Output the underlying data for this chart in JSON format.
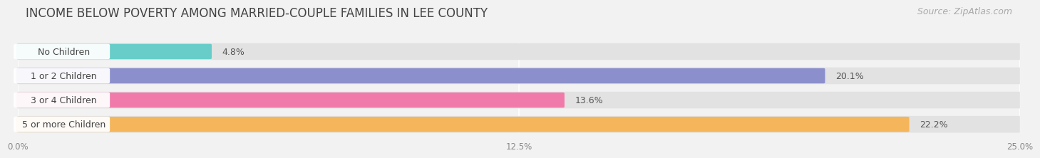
{
  "title": "INCOME BELOW POVERTY AMONG MARRIED-COUPLE FAMILIES IN LEE COUNTY",
  "source": "Source: ZipAtlas.com",
  "categories": [
    "No Children",
    "1 or 2 Children",
    "3 or 4 Children",
    "5 or more Children"
  ],
  "values": [
    4.8,
    20.1,
    13.6,
    22.2
  ],
  "bar_colors": [
    "#68cdc8",
    "#8b8fcc",
    "#f07baa",
    "#f5b55a"
  ],
  "xlim": [
    0,
    25.0
  ],
  "xticks": [
    0.0,
    12.5,
    25.0
  ],
  "xtick_labels": [
    "0.0%",
    "12.5%",
    "25.0%"
  ],
  "background_color": "#f2f2f2",
  "bar_background": "#e2e2e2",
  "row_background": "#fafafa",
  "title_fontsize": 12,
  "source_fontsize": 9,
  "label_fontsize": 9,
  "value_fontsize": 9
}
